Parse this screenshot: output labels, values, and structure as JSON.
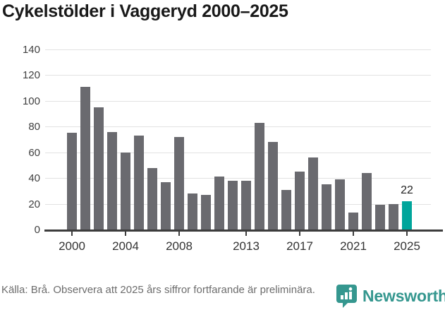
{
  "title": "Cykelstölder i Vaggeryd 2000–2025",
  "chart_data": {
    "type": "bar",
    "title": "Cykelstölder i Vaggeryd 2000–2025",
    "x": [
      2000,
      2001,
      2002,
      2003,
      2004,
      2005,
      2006,
      2007,
      2008,
      2009,
      2010,
      2011,
      2012,
      2013,
      2014,
      2015,
      2016,
      2017,
      2018,
      2019,
      2020,
      2021,
      2022,
      2023,
      2024,
      2025
    ],
    "values": [
      75,
      111,
      95,
      76,
      60,
      73,
      48,
      37,
      72,
      28,
      27,
      41,
      38,
      38,
      83,
      68,
      31,
      45,
      56,
      35,
      39,
      13,
      44,
      19,
      20,
      22
    ],
    "ylim": [
      0,
      140
    ],
    "yticks": [
      0,
      20,
      40,
      60,
      80,
      100,
      120,
      140
    ],
    "xticks": [
      2000,
      2004,
      2008,
      2013,
      2017,
      2021,
      2025
    ],
    "grid": true,
    "legend": "none",
    "highlight_year": 2025,
    "highlight_label": "22",
    "bar_color": "#6a6a6f",
    "highlight_color": "#00a59b"
  },
  "footer": {
    "source": "Källa: Brå. Observera att 2025 års siffror fortfarande är preliminära."
  },
  "branding": {
    "name": "Newsworthy",
    "color": "#35978f"
  }
}
